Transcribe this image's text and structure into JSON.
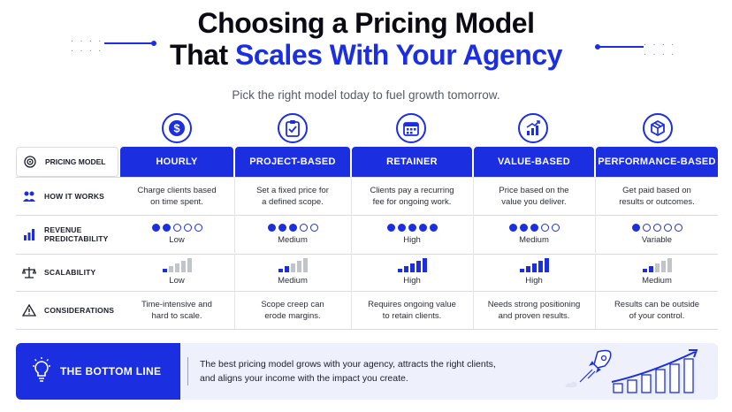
{
  "title": {
    "line1": "Choosing a Pricing Model",
    "line2_prefix": "That ",
    "line2_highlight": "Scales With Your Agency"
  },
  "subtitle": "Pick the right model today to fuel growth tomorrow.",
  "row_labels": {
    "pricing_model": "PRICING MODEL",
    "how_it_works": "HOW IT WORKS",
    "revenue_predictability_1": "REVENUE",
    "revenue_predictability_2": "PREDICTABILITY",
    "scalability": "SCALABILITY",
    "considerations": "CONSIDERATIONS"
  },
  "columns": [
    {
      "name": "HOURLY",
      "icon": "dollar-icon",
      "how": [
        "Charge clients based",
        "on time spent."
      ],
      "predictability": 2,
      "predictability_label": "Low",
      "scalability": 1,
      "scalability_label": "Low",
      "considerations": [
        "Time-intensive and",
        "hard to scale."
      ]
    },
    {
      "name": "PROJECT-BASED",
      "icon": "clipboard-icon",
      "how": [
        "Set a fixed price for",
        "a defined scope."
      ],
      "predictability": 3,
      "predictability_label": "Medium",
      "scalability": 2,
      "scalability_label": "Medium",
      "considerations": [
        "Scope creep can",
        "erode margins."
      ]
    },
    {
      "name": "RETAINER",
      "icon": "calendar-icon",
      "how": [
        "Clients pay a recurring",
        "fee for ongoing work."
      ],
      "predictability": 5,
      "predictability_label": "High",
      "scalability": 5,
      "scalability_label": "High",
      "considerations": [
        "Requires ongoing value",
        "to retain clients."
      ]
    },
    {
      "name": "VALUE-BASED",
      "icon": "growth-chart-icon",
      "how": [
        "Price based on the",
        "value you deliver."
      ],
      "predictability": 3,
      "predictability_label": "Medium",
      "scalability": 5,
      "scalability_label": "High",
      "considerations": [
        "Needs strong positioning",
        "and proven results."
      ]
    },
    {
      "name": "PERFORMANCE-BASED",
      "icon": "box-icon",
      "how": [
        "Get paid based on",
        "results or outcomes."
      ],
      "predictability": 1,
      "predictability_label": "Variable",
      "scalability": 2,
      "scalability_label": "Medium",
      "considerations": [
        "Results can be outside",
        "of your control."
      ]
    }
  ],
  "bottom_line": {
    "heading": "THE BOTTOM LINE",
    "text_1": "The best pricing model grows with your agency, attracts the right clients,",
    "text_2": "and aligns your income with the impact you create."
  },
  "colors": {
    "accent": "#1b2fe0",
    "muted_bar": "#c2c4cc",
    "panel": "#eef1fb"
  }
}
